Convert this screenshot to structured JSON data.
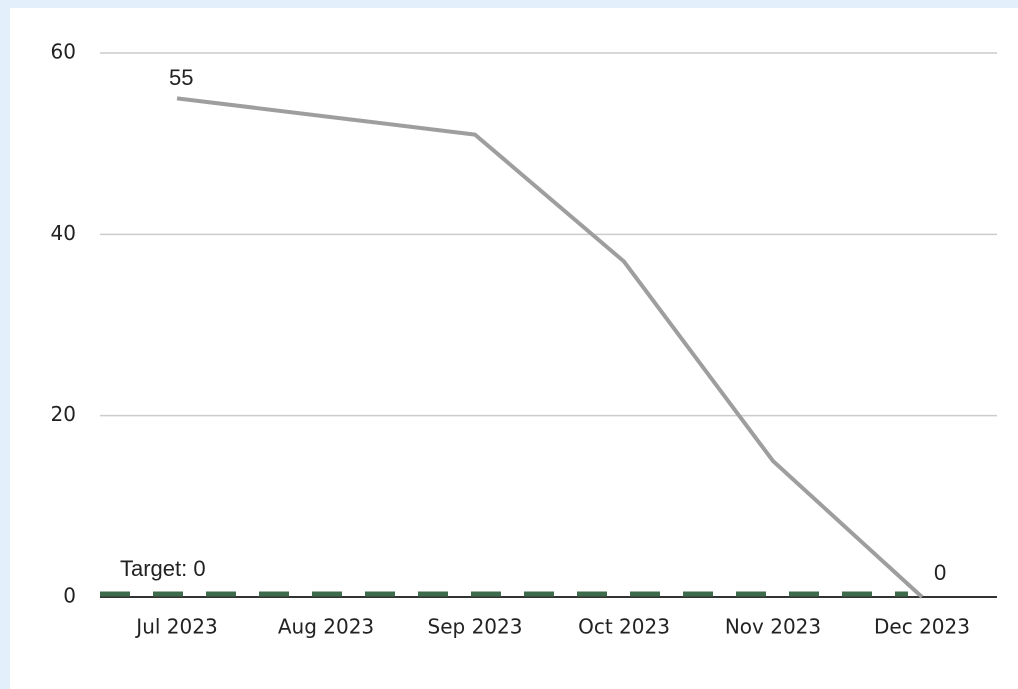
{
  "chart_data": {
    "type": "line",
    "categories": [
      "Jul 2023",
      "Aug 2023",
      "Sep 2023",
      "Oct 2023",
      "Nov 2023",
      "Dec 2023"
    ],
    "series": [
      {
        "name": null,
        "color": "#9e9e9e",
        "values": [
          55,
          53,
          51,
          37,
          15,
          0
        ]
      }
    ],
    "ylim": [
      0,
      60
    ],
    "yticks": [
      0,
      20,
      40,
      60
    ],
    "grid": true,
    "target": 0,
    "target_label": "Target: 0",
    "target_color": "#3d6b4c"
  }
}
